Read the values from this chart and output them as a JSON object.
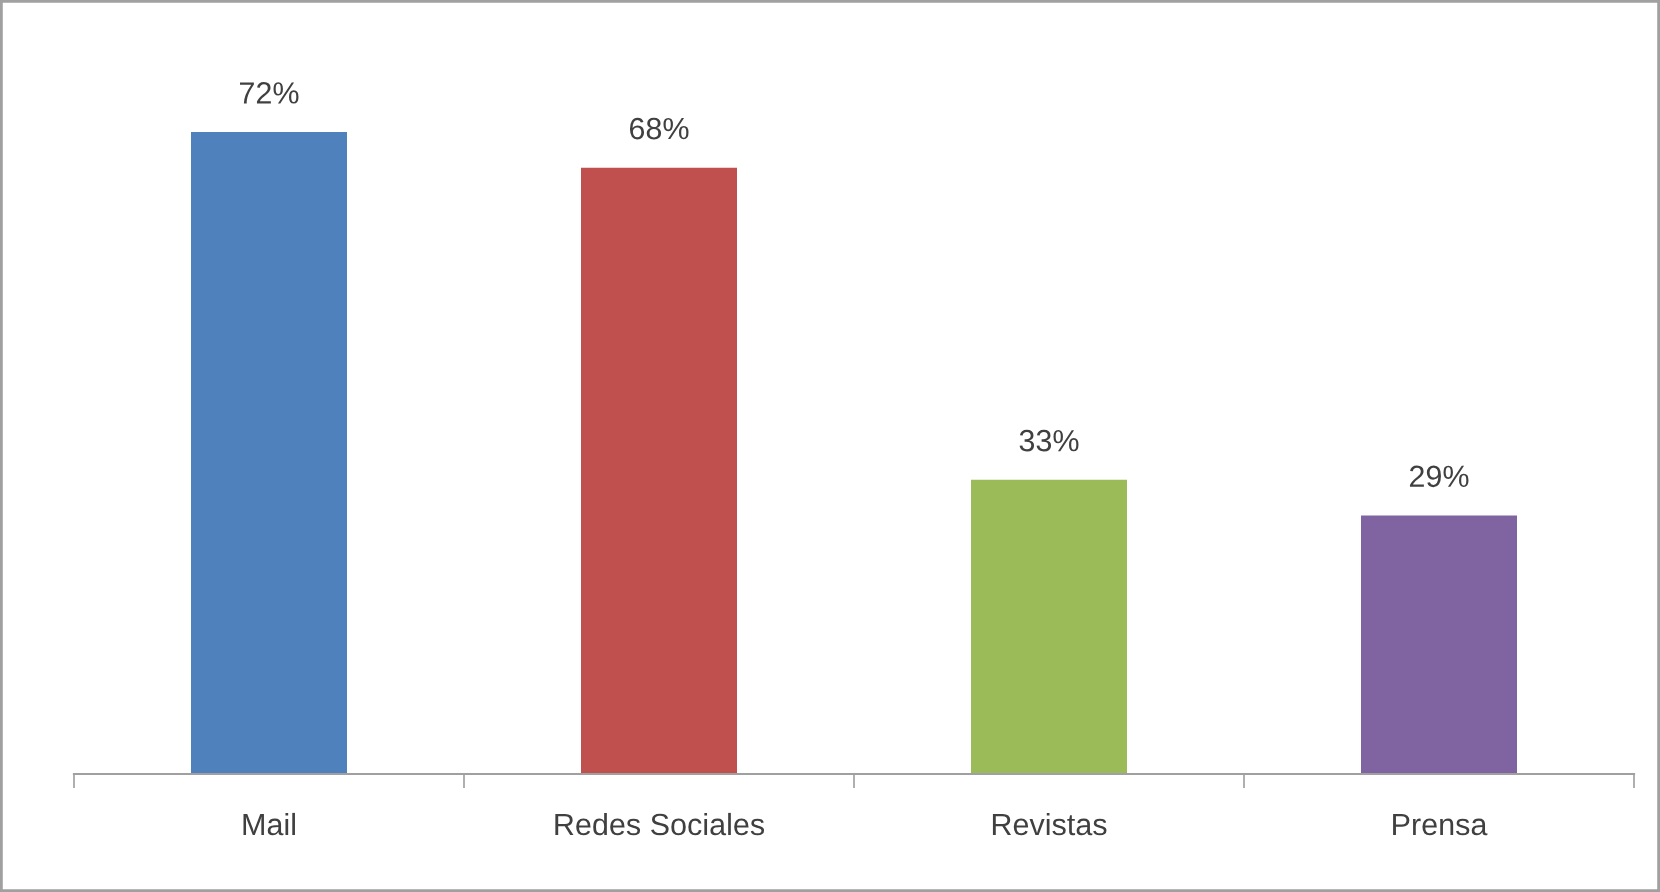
{
  "chart_data": {
    "type": "bar",
    "categories": [
      "Mail",
      "Redes Sociales",
      "Revistas",
      "Prensa"
    ],
    "values": [
      72,
      68,
      33,
      29
    ],
    "colors": [
      "#4f81bd",
      "#c0504d",
      "#9bbb59",
      "#8064a2"
    ],
    "value_labels": [
      "72%",
      "68%",
      "33%",
      "29%"
    ],
    "grid": false,
    "legend": false
  }
}
